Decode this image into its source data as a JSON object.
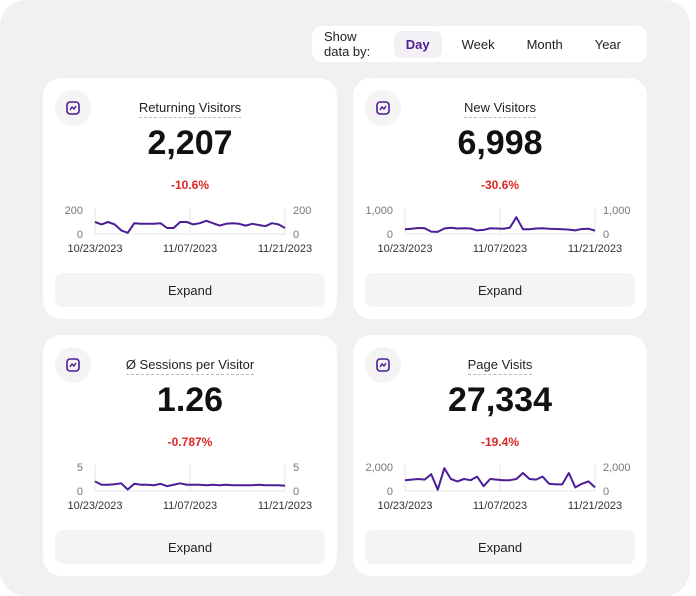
{
  "toolbar": {
    "label": "Show data by:",
    "options": [
      "Day",
      "Week",
      "Month",
      "Year"
    ],
    "selected": "Day"
  },
  "accent": "#4c1d95",
  "negative_color": "#dc2626",
  "cards": [
    {
      "icon": "line-chart-icon",
      "title": "Returning Visitors",
      "value": "2,207",
      "change": "-10.6%",
      "expand": "Expand",
      "chart": {
        "type": "line",
        "ymax_label": "200",
        "ymin_label": "0",
        "ylim": [
          0,
          200
        ],
        "x_labels": [
          "10/23/2023",
          "11/07/2023",
          "11/21/2023"
        ],
        "values": [
          100,
          80,
          100,
          80,
          30,
          10,
          90,
          85,
          85,
          85,
          90,
          50,
          50,
          100,
          100,
          80,
          90,
          110,
          90,
          70,
          85,
          90,
          85,
          70,
          85,
          75,
          65,
          90,
          80,
          50
        ]
      }
    },
    {
      "icon": "line-chart-icon",
      "title": "New Visitors",
      "value": "6,998",
      "change": "-30.6%",
      "expand": "Expand",
      "chart": {
        "type": "line",
        "ymax_label": "1,000",
        "ymin_label": "0",
        "ylim": [
          0,
          1000
        ],
        "x_labels": [
          "10/23/2023",
          "11/07/2023",
          "11/21/2023"
        ],
        "values": [
          200,
          220,
          250,
          240,
          100,
          90,
          230,
          260,
          230,
          240,
          230,
          150,
          170,
          240,
          230,
          220,
          260,
          700,
          200,
          200,
          230,
          240,
          220,
          210,
          200,
          180,
          150,
          210,
          220,
          140
        ]
      }
    },
    {
      "icon": "line-chart-icon",
      "title": "Ø Sessions per Visitor",
      "value": "1.26",
      "change": "-0.787%",
      "expand": "Expand",
      "chart": {
        "type": "line",
        "ymax_label": "5",
        "ymin_label": "0",
        "ylim": [
          0,
          5
        ],
        "x_labels": [
          "10/23/2023",
          "11/07/2023",
          "11/21/2023"
        ],
        "values": [
          2.0,
          1.3,
          1.3,
          1.4,
          1.6,
          0.3,
          1.5,
          1.3,
          1.3,
          1.2,
          1.5,
          1.0,
          1.3,
          1.6,
          1.3,
          1.3,
          1.3,
          1.2,
          1.3,
          1.2,
          1.3,
          1.2,
          1.2,
          1.2,
          1.2,
          1.3,
          1.2,
          1.2,
          1.2,
          1.1
        ]
      }
    },
    {
      "icon": "line-chart-icon",
      "title": "Page Visits",
      "value": "27,334",
      "change": "-19.4%",
      "expand": "Expand",
      "chart": {
        "type": "line",
        "ymax_label": "2,000",
        "ymin_label": "0",
        "ylim": [
          0,
          2000
        ],
        "x_labels": [
          "10/23/2023",
          "11/07/2023",
          "11/21/2023"
        ],
        "values": [
          900,
          950,
          1000,
          950,
          1400,
          100,
          1900,
          1000,
          800,
          1000,
          900,
          1200,
          400,
          1000,
          950,
          900,
          900,
          1000,
          1500,
          1000,
          950,
          1200,
          600,
          550,
          550,
          1500,
          300,
          600,
          800,
          300
        ]
      }
    }
  ]
}
